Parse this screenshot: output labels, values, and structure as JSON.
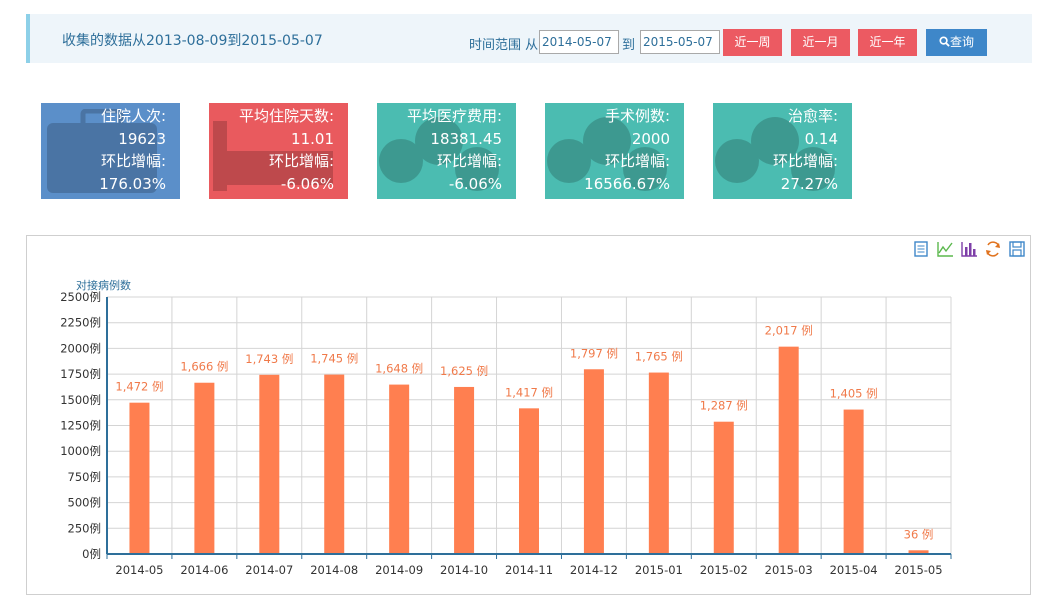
{
  "header": {
    "range_text": "收集的数据从2013-08-09到2015-05-07",
    "time_range_label": "时间范围 从",
    "from_value": "2014-05-07",
    "to_label": "到",
    "to_value": "2015-05-07",
    "btn_week": "近一周",
    "btn_month": "近一月",
    "btn_year": "近一年",
    "btn_query": "查询"
  },
  "cards": [
    {
      "label": "住院人次:",
      "value": "19623",
      "ratio_label": "环比增幅:",
      "ratio": "176.03%",
      "color": "#5b8fc9"
    },
    {
      "label": "平均住院天数:",
      "value": "11.01",
      "ratio_label": "环比增幅:",
      "ratio": "-6.06%",
      "color": "#e95a5e"
    },
    {
      "label": "平均医疗费用:",
      "value": "18381.45",
      "ratio_label": "环比增幅:",
      "ratio": "-6.06%",
      "color": "#4bbcb1"
    },
    {
      "label": "手术例数:",
      "value": "2000",
      "ratio_label": "环比增幅:",
      "ratio": "16566.67%",
      "color": "#4bbcb1"
    },
    {
      "label": "治愈率:",
      "value": "0.14",
      "ratio_label": "环比增幅:",
      "ratio": "27.27%",
      "color": "#4bbcb1"
    }
  ],
  "toolbar_icons": [
    "data-view-icon",
    "line-chart-icon",
    "bar-chart-icon",
    "refresh-icon",
    "save-icon"
  ],
  "chart_data": {
    "type": "bar",
    "legend": "对接病例数",
    "categories": [
      "2014-05",
      "2014-06",
      "2014-07",
      "2014-08",
      "2014-09",
      "2014-10",
      "2014-11",
      "2014-12",
      "2015-01",
      "2015-02",
      "2015-03",
      "2015-04",
      "2015-05"
    ],
    "values": [
      1472,
      1666,
      1743,
      1745,
      1648,
      1625,
      1417,
      1797,
      1765,
      1287,
      2017,
      1405,
      36
    ],
    "data_labels": [
      "1,472 例",
      "1,666 例",
      "1,743 例",
      "1,745 例",
      "1,648 例",
      "1,625 例",
      "1,417 例",
      "1,797 例",
      "1,765 例",
      "1,287 例",
      "2,017 例",
      "1,405 例",
      "36 例"
    ],
    "y_ticks": [
      "0例",
      "250例",
      "500例",
      "750例",
      "1000例",
      "1250例",
      "1500例",
      "1750例",
      "2000例",
      "2250例",
      "2500例"
    ],
    "ylim": [
      0,
      2500
    ],
    "bar_color": "#ff7f50",
    "grid": true
  }
}
